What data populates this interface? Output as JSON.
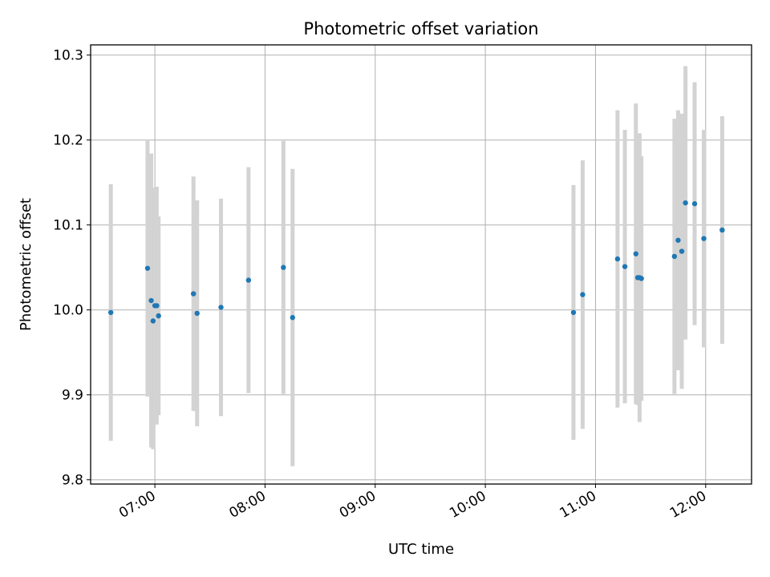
{
  "chart_data": {
    "type": "scatter",
    "title": "Photometric offset variation",
    "xlabel": "UTC time",
    "ylabel": "Photometric offset",
    "grid": true,
    "legend": "none",
    "xlim": [
      "06:25",
      "12:25"
    ],
    "ylim": [
      9.795,
      10.312
    ],
    "x_ticks": [
      "07:00",
      "08:00",
      "09:00",
      "10:00",
      "11:00",
      "12:00"
    ],
    "y_ticks": [
      "9.8",
      "9.9",
      "10.0",
      "10.1",
      "10.2",
      "10.3"
    ],
    "colors": {
      "point": "#1f77b4",
      "errorbar": "#d3d3d3",
      "grid": "#b0b0b0"
    },
    "points": [
      {
        "x": "06:36",
        "y": 9.997,
        "err": 0.151
      },
      {
        "x": "06:56",
        "y": 10.049,
        "err": 0.151
      },
      {
        "x": "06:58",
        "y": 10.011,
        "err": 0.173
      },
      {
        "x": "06:59",
        "y": 9.987,
        "err": 0.151
      },
      {
        "x": "07:00",
        "y": 10.005,
        "err": 0.139
      },
      {
        "x": "07:01",
        "y": 10.005,
        "err": 0.14
      },
      {
        "x": "07:02",
        "y": 9.993,
        "err": 0.117
      },
      {
        "x": "07:21",
        "y": 10.019,
        "err": 0.138
      },
      {
        "x": "07:23",
        "y": 9.996,
        "err": 0.133
      },
      {
        "x": "07:36",
        "y": 10.003,
        "err": 0.128
      },
      {
        "x": "07:51",
        "y": 10.035,
        "err": 0.133
      },
      {
        "x": "08:10",
        "y": 10.05,
        "err": 0.149
      },
      {
        "x": "08:15",
        "y": 9.991,
        "err": 0.175
      },
      {
        "x": "10:48",
        "y": 9.997,
        "err": 0.15
      },
      {
        "x": "10:53",
        "y": 10.018,
        "err": 0.158
      },
      {
        "x": "11:12",
        "y": 10.06,
        "err": 0.175
      },
      {
        "x": "11:16",
        "y": 10.051,
        "err": 0.161
      },
      {
        "x": "11:22",
        "y": 10.066,
        "err": 0.177
      },
      {
        "x": "11:23",
        "y": 10.038,
        "err": 0.15
      },
      {
        "x": "11:24",
        "y": 10.038,
        "err": 0.17
      },
      {
        "x": "11:25",
        "y": 10.037,
        "err": 0.144
      },
      {
        "x": "11:43",
        "y": 10.063,
        "err": 0.162
      },
      {
        "x": "11:45",
        "y": 10.082,
        "err": 0.153
      },
      {
        "x": "11:47",
        "y": 10.069,
        "err": 0.162
      },
      {
        "x": "11:49",
        "y": 10.126,
        "err": 0.161
      },
      {
        "x": "11:54",
        "y": 10.125,
        "err": 0.143
      },
      {
        "x": "11:59",
        "y": 10.084,
        "err": 0.128
      },
      {
        "x": "12:09",
        "y": 10.094,
        "err": 0.134
      }
    ]
  }
}
